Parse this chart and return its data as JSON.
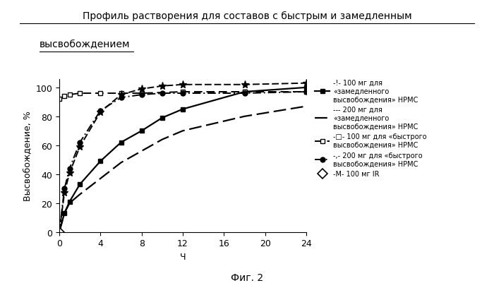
{
  "title_line1": "Профиль растворения для составов с быстрым и замедленным",
  "title_line2": "высвобождением",
  "xlabel": "Ч",
  "ylabel": "Высвобождение, %",
  "caption": "Фиг. 2",
  "xlim": [
    0,
    24
  ],
  "ylim": [
    0,
    106
  ],
  "xticks": [
    0,
    4,
    8,
    12,
    16,
    20,
    24
  ],
  "yticks": [
    0,
    20,
    40,
    60,
    80,
    100
  ],
  "background_color": "#ffffff",
  "title_fontsize": 10,
  "label_fontsize": 9,
  "tick_fontsize": 9,
  "legend_fontsize": 7,
  "caption_fontsize": 10,
  "s1_x": [
    0,
    0.5,
    1,
    2,
    4,
    6,
    8,
    10,
    12,
    18,
    24
  ],
  "s1_y": [
    0,
    13,
    21,
    33,
    49,
    62,
    70,
    79,
    85,
    97,
    100
  ],
  "s2_x": [
    0,
    0.5,
    1,
    2,
    4,
    6,
    8,
    10,
    12,
    18,
    24
  ],
  "s2_y": [
    0,
    13,
    20,
    26,
    37,
    48,
    56,
    64,
    70,
    80,
    87
  ],
  "s3_x": [
    0,
    0.5,
    1,
    2,
    4,
    6,
    8,
    12,
    18,
    24
  ],
  "s3_y": [
    92,
    94,
    95,
    96,
    96,
    96,
    96,
    97,
    97,
    97
  ],
  "s4_x": [
    0,
    0.5,
    1,
    2,
    4,
    6,
    8,
    10,
    12,
    18,
    24
  ],
  "s4_y": [
    0,
    30,
    44,
    62,
    84,
    93,
    95,
    96,
    96,
    96,
    97
  ],
  "s5_x": [
    0,
    0.5,
    1,
    2,
    4,
    6,
    8,
    10,
    12,
    18,
    24
  ],
  "s5_y": [
    0,
    27,
    41,
    59,
    83,
    95,
    99,
    101,
    102,
    102,
    103
  ],
  "s6_x": [
    0
  ],
  "s6_y": [
    0
  ],
  "legend_labels": [
    "-!- 100 мг для\n«замедленного\nвысвобождения» НРМС",
    "--- 200 мг для\n«замедленного\nвысвобождения» НРМС",
    "-□- 100 мг для «быстрого\nвысвобождения» НРМС",
    "-,- 200 мг для «быстрого\nвысвобождения» НРМС",
    "-M- 100 мг IR"
  ]
}
